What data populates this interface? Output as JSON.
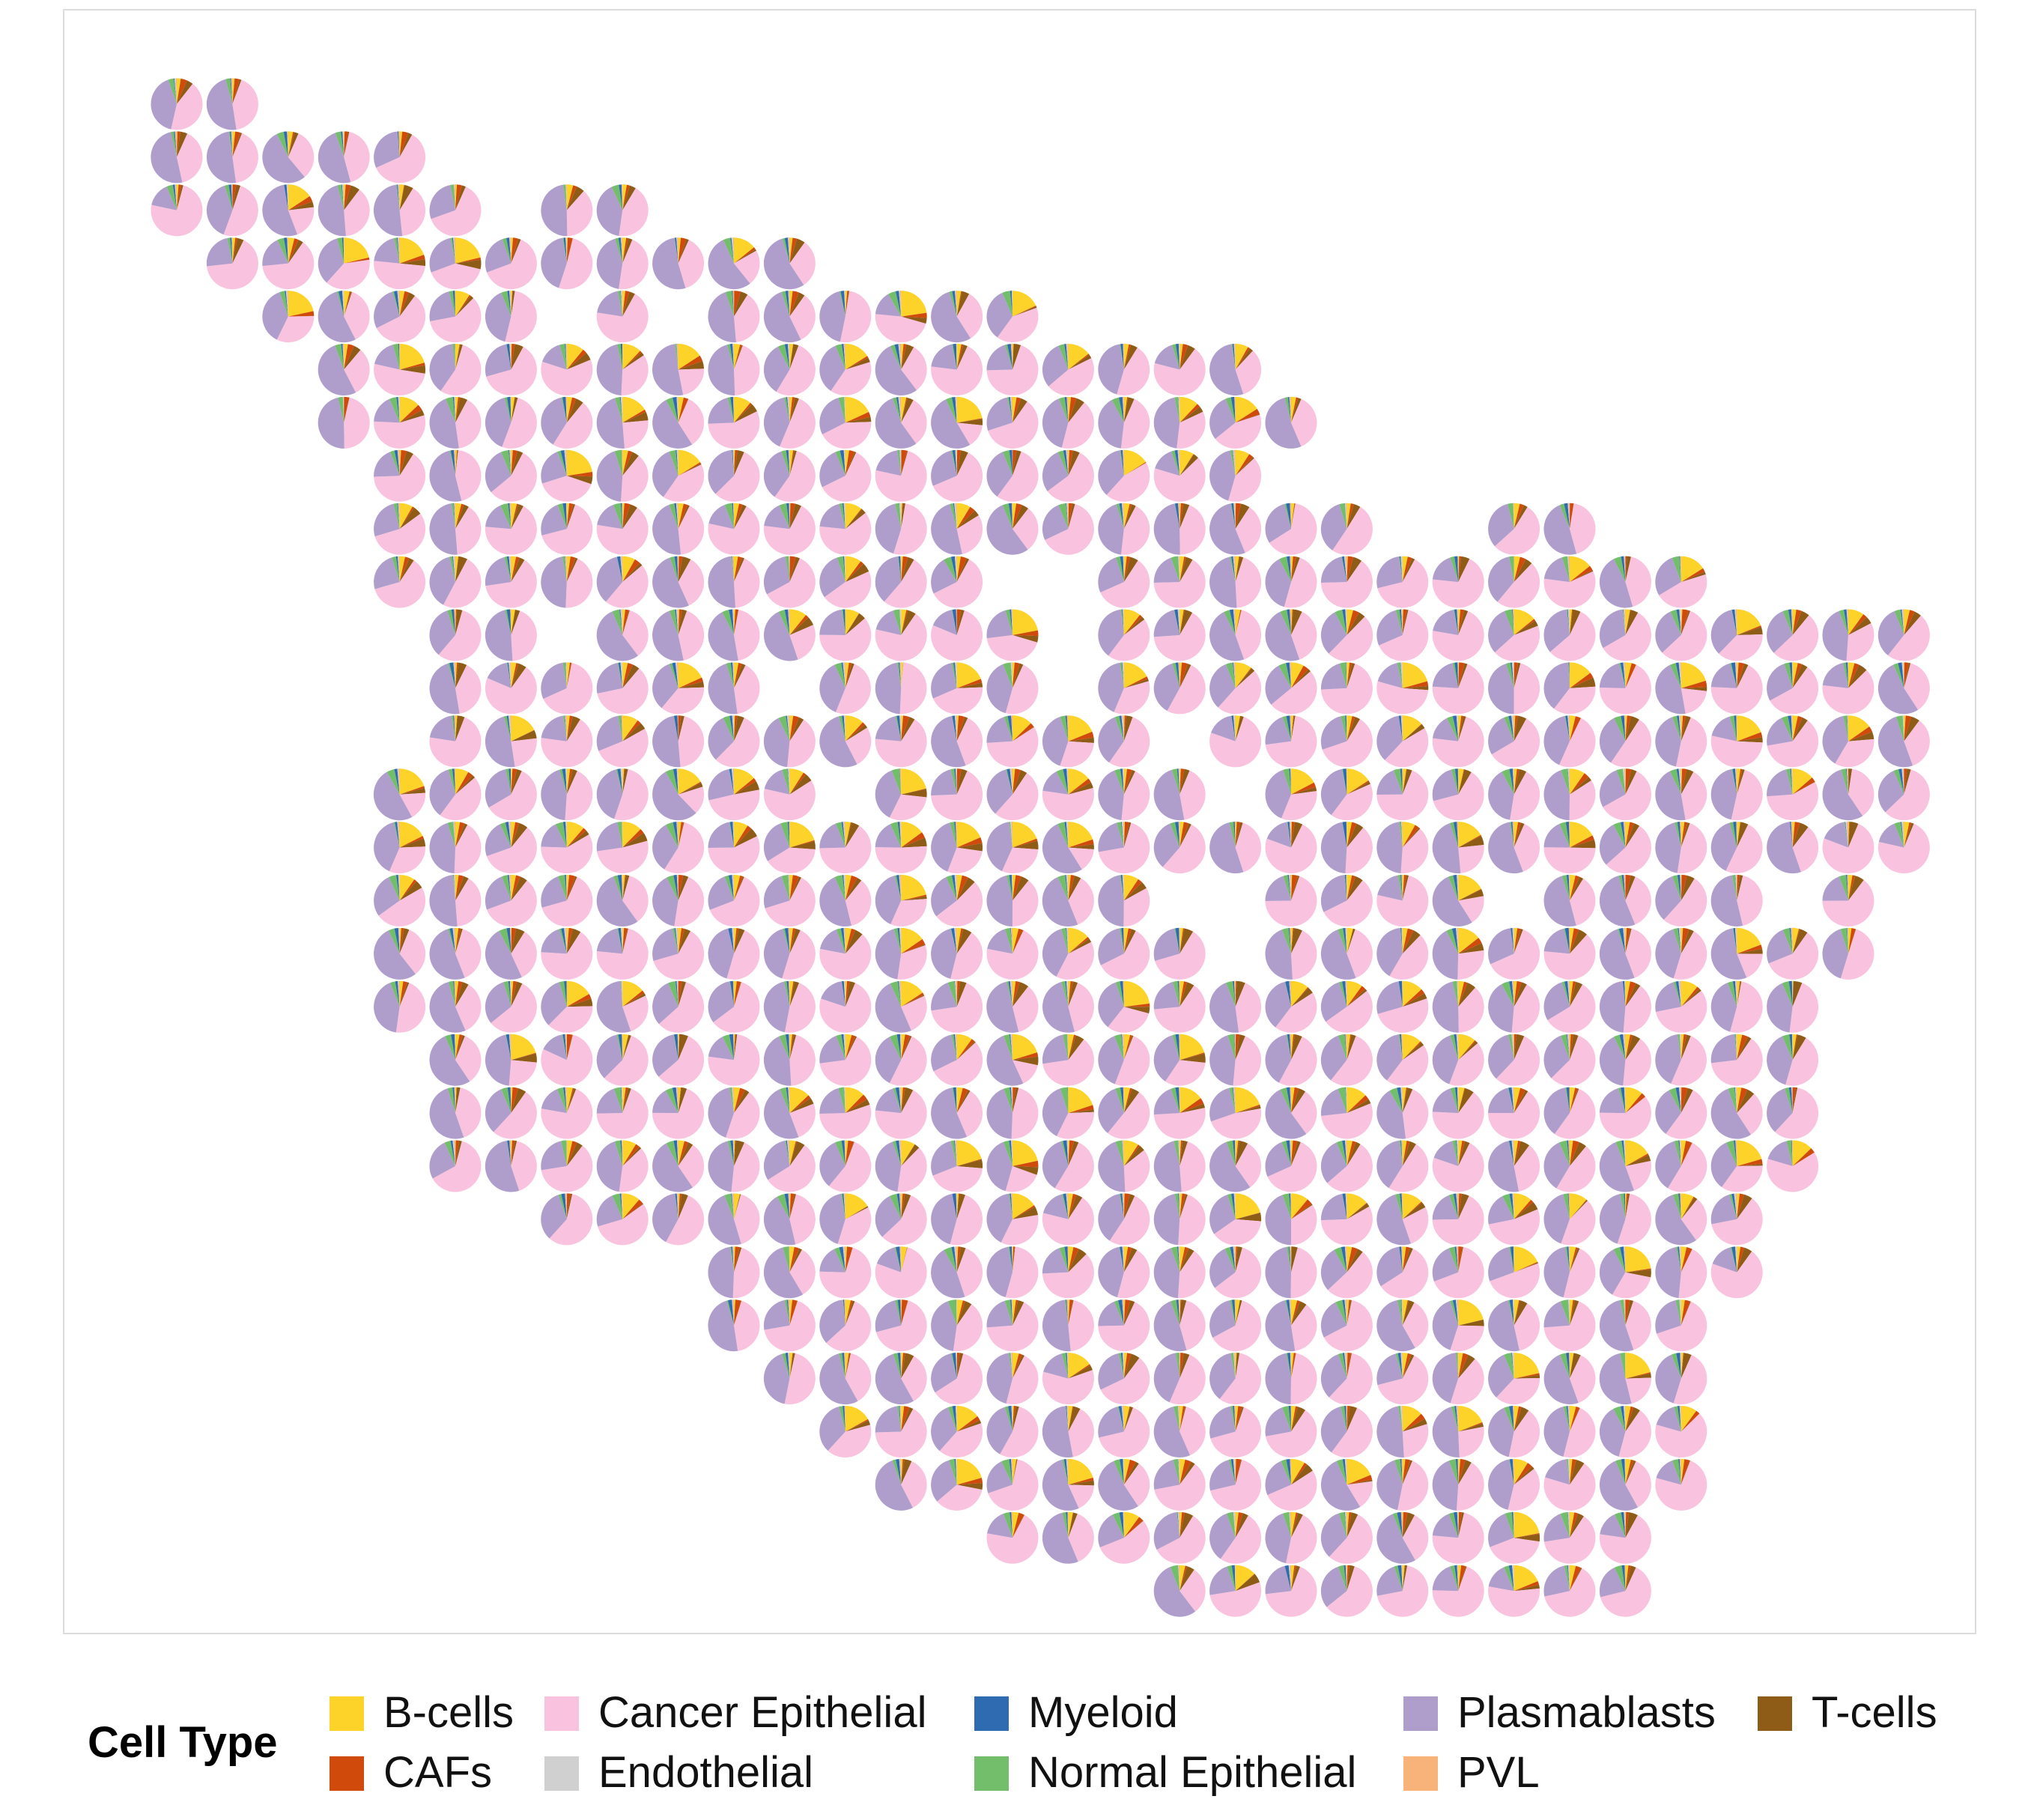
{
  "chart_data": {
    "type": "scatter-pie",
    "title": "",
    "xlabel": "",
    "ylabel": "",
    "grid": false,
    "axes_visible": false,
    "legend": {
      "title": "Cell Type",
      "placement": "bottom",
      "entries": [
        {
          "name": "B-cells",
          "color": "#FDD32A"
        },
        {
          "name": "CAFs",
          "color": "#D04A0C"
        },
        {
          "name": "Cancer Epithelial",
          "color": "#F9C3DF"
        },
        {
          "name": "Endothelial",
          "color": "#D0D0D0"
        },
        {
          "name": "Myeloid",
          "color": "#2E6BB0"
        },
        {
          "name": "Normal Epithelial",
          "color": "#72BE6B"
        },
        {
          "name": "Plasmablasts",
          "color": "#AF9ECB"
        },
        {
          "name": "PVL",
          "color": "#F8B37A"
        },
        {
          "name": "T-cells",
          "color": "#8E5C16"
        }
      ]
    },
    "spot_grid": {
      "columns": 32,
      "rows": 29,
      "rows_occupied": [
        [
          0,
          1
        ],
        [
          0,
          4
        ],
        [
          0,
          5
        ],
        [
          7,
          8
        ],
        [
          1,
          11
        ],
        [
          2,
          6
        ],
        [
          8,
          8
        ],
        [
          10,
          15
        ],
        [
          3,
          19
        ],
        [
          3,
          20
        ],
        [
          4,
          19
        ],
        [
          4,
          21
        ],
        [
          24,
          25
        ],
        [
          4,
          27
        ],
        [
          5,
          31
        ],
        [
          5,
          31
        ],
        [
          5,
          31
        ],
        [
          4,
          31
        ],
        [
          4,
          31
        ],
        [
          4,
          18
        ],
        [
          20,
          23
        ],
        [
          25,
          28
        ],
        [
          30,
          30
        ],
        [
          4,
          30
        ],
        [
          4,
          29
        ],
        [
          5,
          29
        ],
        [
          5,
          29
        ],
        [
          5,
          29
        ],
        [
          7,
          28
        ],
        [
          10,
          28
        ],
        [
          10,
          27
        ],
        [
          11,
          27
        ],
        [
          12,
          27
        ],
        [
          13,
          27
        ],
        [
          15,
          26
        ],
        [
          18,
          26
        ]
      ],
      "row_index": [
        0,
        1,
        2,
        2,
        3,
        4,
        4,
        4,
        5,
        6,
        7,
        8,
        8,
        9,
        10,
        11,
        12,
        13,
        14,
        15,
        15,
        15,
        15,
        16,
        17,
        18,
        19,
        20,
        21,
        22,
        23,
        24,
        25,
        26,
        27,
        28
      ],
      "missing_spots": [
        [
          9,
          15
        ],
        [
          9,
          16
        ],
        [
          10,
          16
        ],
        [
          11,
          16
        ],
        [
          11,
          11
        ],
        [
          12,
          18
        ],
        [
          13,
          19
        ],
        [
          15,
          18
        ],
        [
          15,
          24
        ],
        [
          16,
          19
        ],
        [
          10,
          7
        ],
        [
          13,
          12
        ]
      ]
    }
  }
}
